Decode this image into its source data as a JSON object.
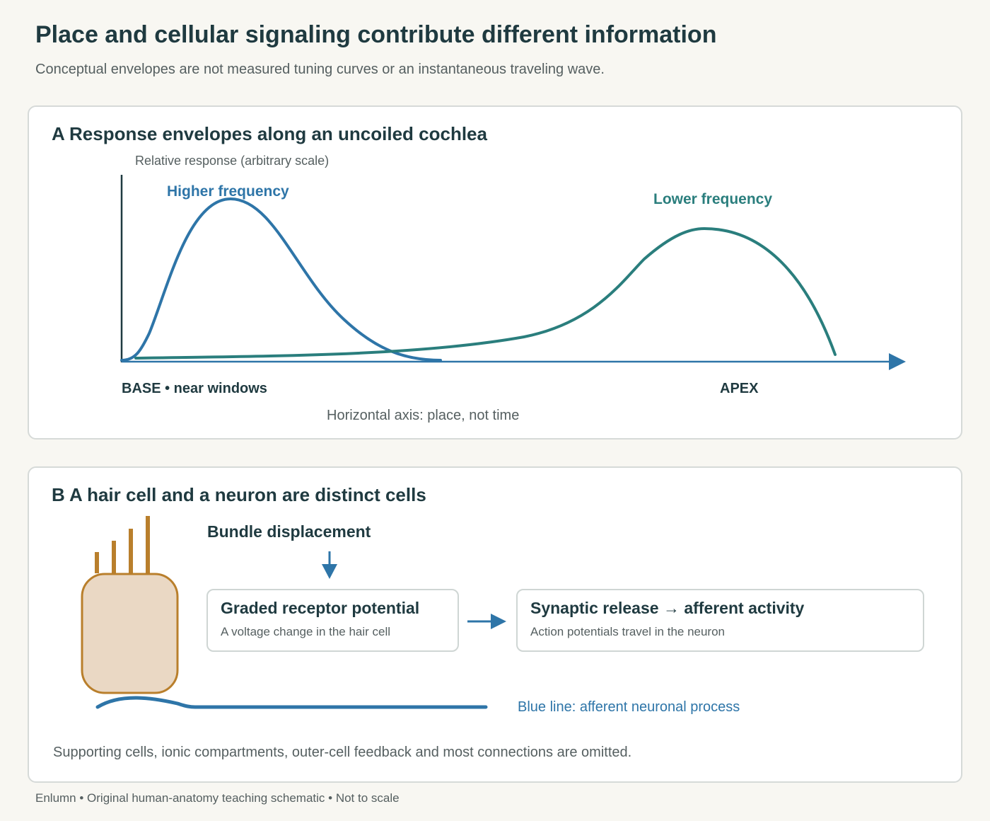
{
  "header": {
    "title": "Place and cellular signaling contribute different information",
    "subtitle": "Conceptual envelopes are not measured tuning curves or an instantaneous traveling wave."
  },
  "panel_a": {
    "title": "A Response envelopes along an uncoiled cochlea",
    "y_axis_label": "Relative response (arbitrary scale)",
    "x_axis_label": "Horizontal axis: place, not time",
    "base_label": "BASE • near windows",
    "apex_label": "APEX",
    "curves": [
      {
        "name": "Higher frequency",
        "color": "#2e75a8"
      },
      {
        "name": "Lower frequency",
        "color": "#2a7e7d"
      }
    ]
  },
  "panel_b": {
    "title": "B A hair cell and a neuron are distinct cells",
    "trigger_label": "Bundle displacement",
    "box1": {
      "title": "Graded receptor potential",
      "subtitle": "A voltage change in the hair cell"
    },
    "box2": {
      "title": "Synaptic release → afferent activity",
      "subtitle": "Action potentials travel in the neuron"
    },
    "neuron_label": "Blue line: afferent neuronal process",
    "note": "Supporting cells, ionic compartments, outer-cell feedback and most connections are omitted.",
    "colors": {
      "hair_cell_fill": "#ead8c4",
      "hair_cell_stroke": "#b97f2c",
      "neuron": "#2e75a8"
    }
  },
  "footer": "Enlumn • Original human-anatomy teaching schematic • Not to scale"
}
